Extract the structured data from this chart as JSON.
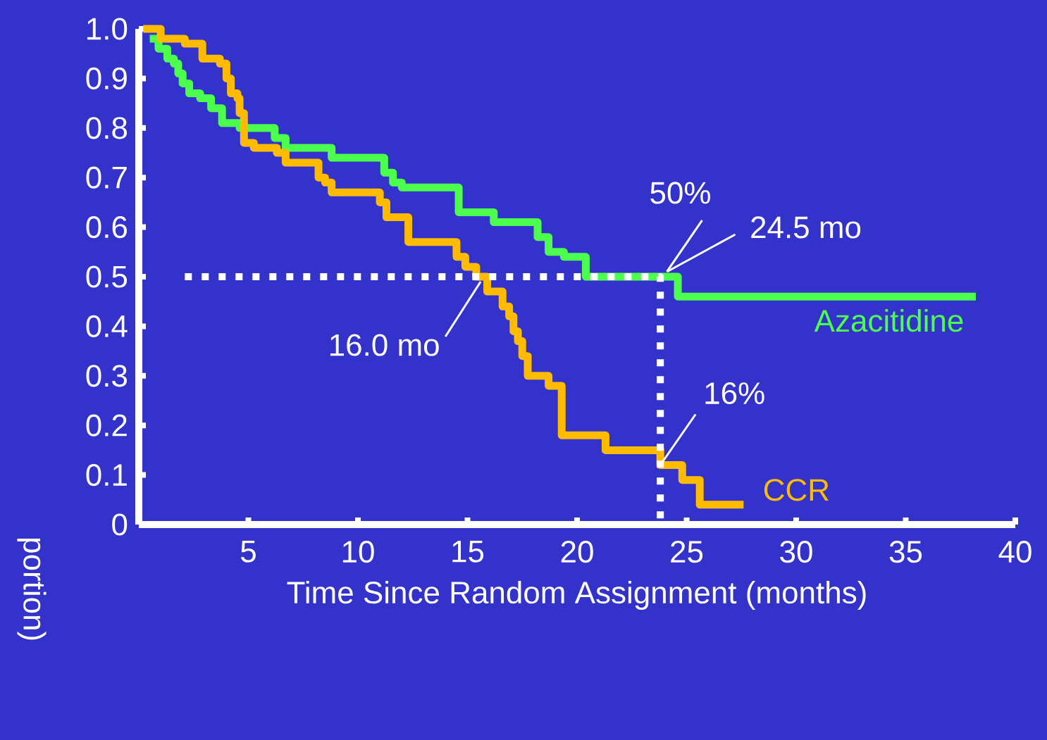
{
  "chart_data": {
    "type": "step",
    "xlabel": "Time Since Random Assignment (months)",
    "ylabel": "portion)",
    "xlim": [
      0,
      40
    ],
    "ylim": [
      0,
      1.0
    ],
    "xticks": [
      5,
      10,
      15,
      20,
      25,
      30,
      35,
      40
    ],
    "yticks": [
      0,
      0.1,
      0.2,
      0.3,
      0.4,
      0.5,
      0.6,
      0.7,
      0.8,
      0.9,
      {
        "value": 1.0,
        "label": "1.0"
      }
    ],
    "series": [
      {
        "name": "Azacitidine",
        "color": "#4cff4c",
        "x": [
          0.5,
          0.9,
          1.3,
          1.6,
          1.8,
          2.0,
          2.3,
          2.8,
          3.3,
          3.8,
          4.6,
          6.2,
          6.7,
          8.8,
          11.2,
          11.6,
          12.0,
          14.6,
          16.2,
          18.2,
          18.7,
          19.4,
          20.4,
          24.6,
          38.2
        ],
        "values": [
          0.98,
          0.96,
          0.94,
          0.93,
          0.91,
          0.89,
          0.87,
          0.86,
          0.84,
          0.81,
          0.8,
          0.78,
          0.76,
          0.74,
          0.71,
          0.69,
          0.68,
          0.63,
          0.61,
          0.58,
          0.55,
          0.54,
          0.5,
          0.46,
          0.46
        ]
      },
      {
        "name": "CCR",
        "color": "#ffbb00",
        "x": [
          0.2,
          1.0,
          2.1,
          2.9,
          3.7,
          4.0,
          4.2,
          4.5,
          4.6,
          4.8,
          5.25,
          6.3,
          6.7,
          8.2,
          8.5,
          8.8,
          11.0,
          11.3,
          12.3,
          14.5,
          14.9,
          15.4,
          15.9,
          16.6,
          16.9,
          17.1,
          17.3,
          17.5,
          17.75,
          18.7,
          19.3,
          21.3,
          23.8,
          24.8,
          25.6,
          27.6
        ],
        "values": [
          1.0,
          0.98,
          0.97,
          0.94,
          0.93,
          0.9,
          0.87,
          0.86,
          0.83,
          0.77,
          0.76,
          0.75,
          0.73,
          0.7,
          0.69,
          0.67,
          0.65,
          0.62,
          0.57,
          0.54,
          0.52,
          0.5,
          0.47,
          0.44,
          0.42,
          0.39,
          0.37,
          0.34,
          0.3,
          0.28,
          0.18,
          0.15,
          0.12,
          0.09,
          0.04,
          0.04
        ]
      },
      {
        "type": "line",
        "color": "#ffffff",
        "line_style": "dotted",
        "x": [
          2.1,
          23.8,
          23.8
        ],
        "values": [
          0.5,
          0.5,
          0
        ]
      }
    ],
    "annotations": [
      {
        "text": "50%",
        "x": 24.1,
        "y": 0.51
      },
      {
        "text": "24.5 mo",
        "x": 24.1,
        "y": 0.51
      },
      {
        "text": "16.0 mo",
        "x": 15.6,
        "y": 0.49
      },
      {
        "text": "16%",
        "x": 23.8,
        "y": 0.12
      }
    ]
  }
}
